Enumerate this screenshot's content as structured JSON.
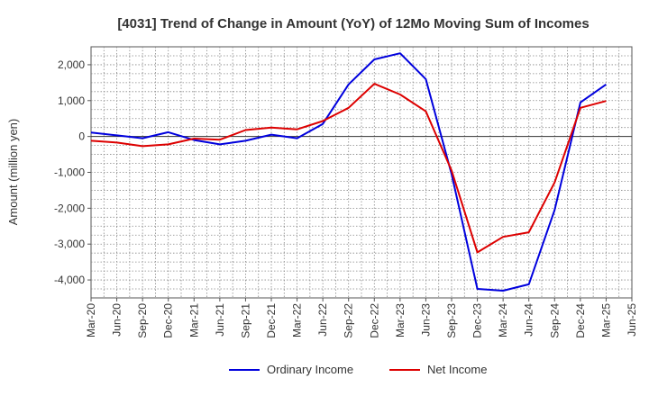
{
  "chart_data": {
    "type": "line",
    "title": "[4031]  Trend of Change in Amount (YoY) of 12Mo Moving Sum of Incomes",
    "ylabel": "Amount (million yen)",
    "xlabel": "",
    "ylim": [
      -4500,
      2500
    ],
    "yticks": [
      2000,
      1000,
      0,
      -1000,
      -2000,
      -3000,
      -4000
    ],
    "ytick_labels": [
      "2,000",
      "1,000",
      "0",
      "-1,000",
      "-2,000",
      "-3,000",
      "-4,000"
    ],
    "categories": [
      "Mar-20",
      "Jun-20",
      "Sep-20",
      "Dec-20",
      "Mar-21",
      "Jun-21",
      "Sep-21",
      "Dec-21",
      "Mar-22",
      "Jun-22",
      "Sep-22",
      "Dec-22",
      "Mar-23",
      "Jun-23",
      "Sep-23",
      "Dec-23",
      "Mar-24",
      "Jun-24",
      "Sep-24",
      "Dec-24",
      "Mar-25",
      "Jun-25"
    ],
    "grid": true,
    "legend_position": "bottom-center",
    "series": [
      {
        "name": "Ordinary Income",
        "color": "#0000dd",
        "values": [
          110,
          30,
          -50,
          120,
          -100,
          -220,
          -120,
          50,
          -50,
          350,
          1450,
          2150,
          2320,
          1600,
          -1050,
          -4250,
          -4300,
          -4120,
          -2050,
          950,
          1450,
          null
        ]
      },
      {
        "name": "Net Income",
        "color": "#dd0000",
        "values": [
          -120,
          -170,
          -270,
          -220,
          -60,
          -90,
          180,
          250,
          200,
          430,
          800,
          1470,
          1170,
          700,
          -950,
          -3230,
          -2800,
          -2670,
          -1280,
          800,
          990,
          null
        ]
      }
    ]
  }
}
